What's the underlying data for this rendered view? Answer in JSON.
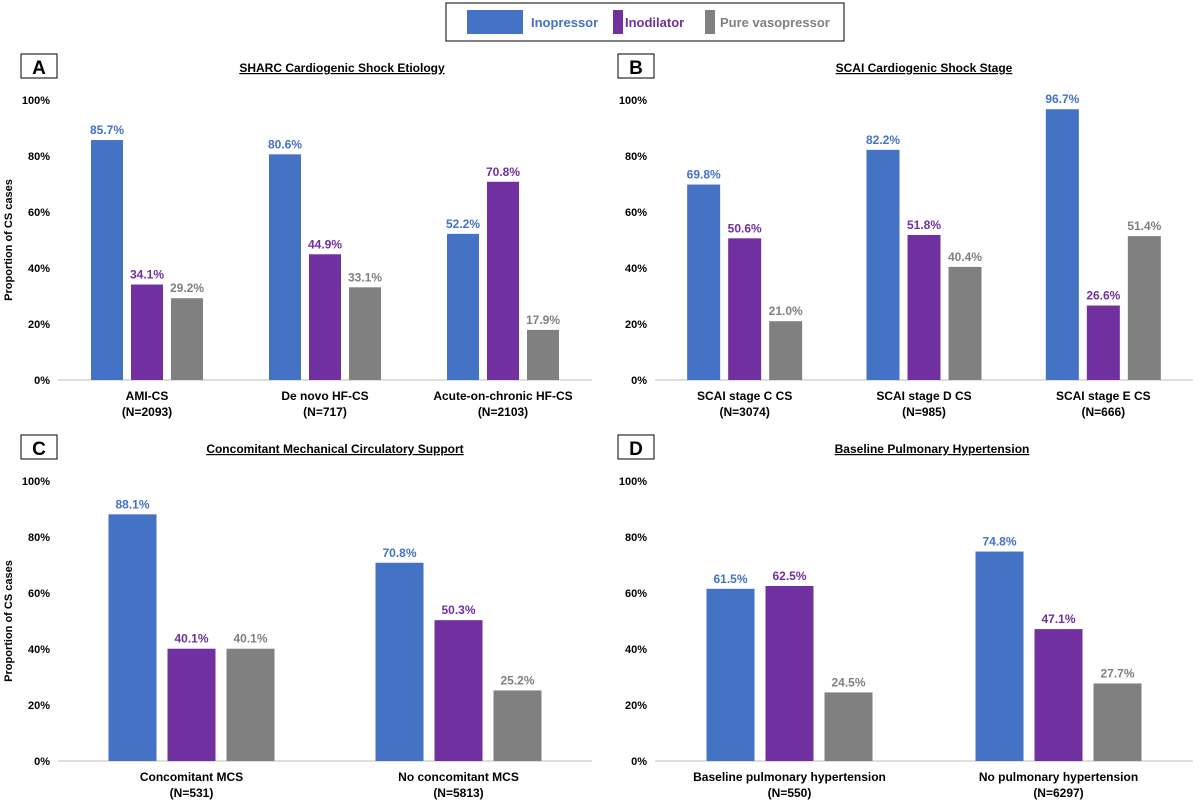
{
  "legend": {
    "items": [
      {
        "label": "Inopressor",
        "color": "#4472C4"
      },
      {
        "label": "Inodilator",
        "color": "#7030A0"
      },
      {
        "label": "Pure vasopressor",
        "color": "#808080"
      }
    ]
  },
  "colors": {
    "series": [
      "#4472C4",
      "#7030A0",
      "#808080"
    ],
    "labels": [
      "#4472C4",
      "#7030A0",
      "#808080"
    ],
    "axis_text": "#000000",
    "axis_line": "#bfbfbf"
  },
  "chart_data": [
    {
      "panel": "A",
      "type": "bar",
      "title": "SHARC Cardiogenic Shock Etiology",
      "ylabel": "Proportion of CS cases",
      "yticks": [
        "0%",
        "20%",
        "40%",
        "60%",
        "80%",
        "100%"
      ],
      "ylim": [
        0,
        100
      ],
      "categories": [
        {
          "name": "AMI-CS",
          "n": "(N=2093)"
        },
        {
          "name": "De novo HF-CS",
          "n": "(N=717)"
        },
        {
          "name": "Acute-on-chronic HF-CS",
          "n": "(N=2103)"
        }
      ],
      "series": [
        {
          "name": "Inopressor",
          "values": [
            85.7,
            80.6,
            52.2
          ],
          "labels": [
            "85.7%",
            "80.6%",
            "52.2%"
          ]
        },
        {
          "name": "Inodilator",
          "values": [
            34.1,
            44.9,
            70.8
          ],
          "labels": [
            "34.1%",
            "44.9%",
            "70.8%"
          ]
        },
        {
          "name": "Pure vasopressor",
          "values": [
            29.2,
            33.1,
            17.9
          ],
          "labels": [
            "29.2%",
            "33.1%",
            "17.9%"
          ]
        }
      ]
    },
    {
      "panel": "B",
      "type": "bar",
      "title": "SCAI Cardiogenic Shock Stage",
      "ylabel": "",
      "yticks": [
        "0%",
        "20%",
        "40%",
        "60%",
        "80%",
        "100%"
      ],
      "ylim": [
        0,
        100
      ],
      "categories": [
        {
          "name": "SCAI stage C CS",
          "n": "(N=3074)"
        },
        {
          "name": "SCAI stage D CS",
          "n": "(N=985)"
        },
        {
          "name": "SCAI stage E CS",
          "n": "(N=666)"
        }
      ],
      "series": [
        {
          "name": "Inopressor",
          "values": [
            69.8,
            82.2,
            96.7
          ],
          "labels": [
            "69.8%",
            "82.2%",
            "96.7%"
          ]
        },
        {
          "name": "Inodilator",
          "values": [
            50.6,
            51.8,
            26.6
          ],
          "labels": [
            "50.6%",
            "51.8%",
            "26.6%"
          ]
        },
        {
          "name": "Pure vasopressor",
          "values": [
            21.0,
            40.4,
            51.4
          ],
          "labels": [
            "21.0%",
            "40.4%",
            "51.4%"
          ]
        }
      ]
    },
    {
      "panel": "C",
      "type": "bar",
      "title": "Concomitant Mechanical Circulatory Support",
      "ylabel": "Proportion of CS cases",
      "yticks": [
        "0%",
        "20%",
        "40%",
        "60%",
        "80%",
        "100%"
      ],
      "ylim": [
        0,
        100
      ],
      "categories": [
        {
          "name": "Concomitant MCS",
          "n": "(N=531)"
        },
        {
          "name": "No concomitant MCS",
          "n": "(N=5813)"
        }
      ],
      "series": [
        {
          "name": "Inopressor",
          "values": [
            88.1,
            70.8
          ],
          "labels": [
            "88.1%",
            "70.8%"
          ]
        },
        {
          "name": "Inodilator",
          "values": [
            40.1,
            50.3
          ],
          "labels": [
            "40.1%",
            "50.3%"
          ]
        },
        {
          "name": "Pure vasopressor",
          "values": [
            40.1,
            25.2
          ],
          "labels": [
            "40.1%",
            "25.2%"
          ]
        }
      ]
    },
    {
      "panel": "D",
      "type": "bar",
      "title": "Baseline Pulmonary Hypertension",
      "ylabel": "",
      "yticks": [
        "0%",
        "20%",
        "40%",
        "60%",
        "80%",
        "100%"
      ],
      "ylim": [
        0,
        100
      ],
      "categories": [
        {
          "name": "Baseline pulmonary hypertension",
          "n": "(N=550)"
        },
        {
          "name": "No pulmonary hypertension",
          "n": "(N=6297)"
        }
      ],
      "series": [
        {
          "name": "Inopressor",
          "values": [
            61.5,
            74.8
          ],
          "labels": [
            "61.5%",
            "74.8%"
          ]
        },
        {
          "name": "Inodilator",
          "values": [
            62.5,
            47.1
          ],
          "labels": [
            "62.5%",
            "47.1%"
          ]
        },
        {
          "name": "Pure vasopressor",
          "values": [
            24.5,
            27.7
          ],
          "labels": [
            "24.5%",
            "27.7%"
          ]
        }
      ]
    }
  ]
}
